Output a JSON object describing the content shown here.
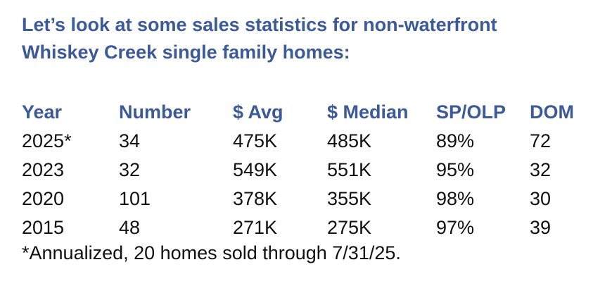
{
  "heading": {
    "line1": "Let’s look at some sales statistics for non-waterfront",
    "line2": "Whiskey Creek single family homes:"
  },
  "table": {
    "headers": [
      "Year",
      "Number",
      "$ Avg",
      "$ Median",
      "SP/OLP",
      "DOM"
    ],
    "rows": [
      [
        "2025*",
        "34",
        "475K",
        "485K",
        "89%",
        "72"
      ],
      [
        "2023",
        "32",
        "549K",
        "551K",
        "95%",
        "32"
      ],
      [
        "2020",
        "101",
        "378K",
        "355K",
        "98%",
        "30"
      ],
      [
        "2015",
        "48",
        "271K",
        "275K",
        "97%",
        "39"
      ]
    ]
  },
  "footnote": "*Annualized, 20 homes sold through 7/31/25.",
  "colors": {
    "heading": "#3d5a98",
    "body_text": "#111111",
    "background": "#ffffff"
  }
}
